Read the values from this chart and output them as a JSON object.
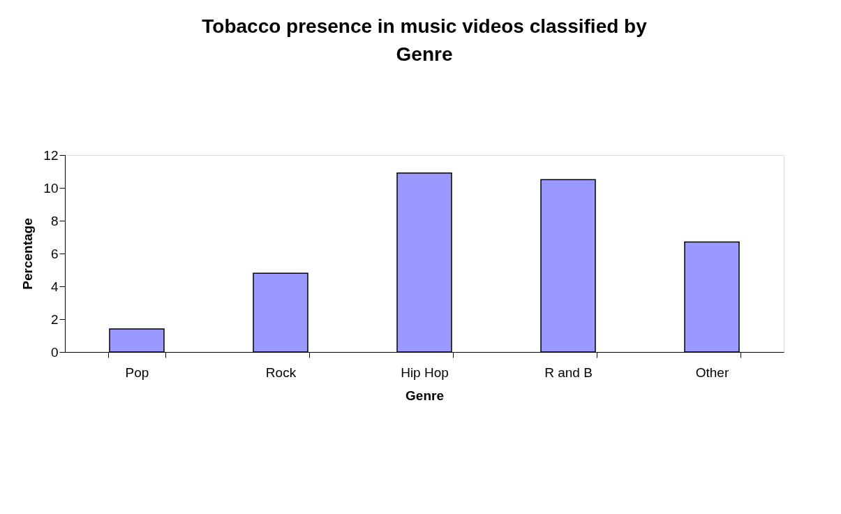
{
  "chart_data": {
    "type": "bar",
    "title": "Tobacco presence in music videos classified by Genre",
    "xlabel": "Genre",
    "ylabel": "Percentage",
    "categories": [
      "Pop",
      "Rock",
      "Hip Hop",
      "R and B",
      "Other"
    ],
    "values": [
      1.4,
      4.8,
      10.9,
      10.5,
      6.7
    ],
    "color": "#9999ff",
    "ylim": [
      0,
      12
    ],
    "yticks": [
      0,
      2,
      4,
      6,
      8,
      10,
      12
    ],
    "grid": false
  }
}
